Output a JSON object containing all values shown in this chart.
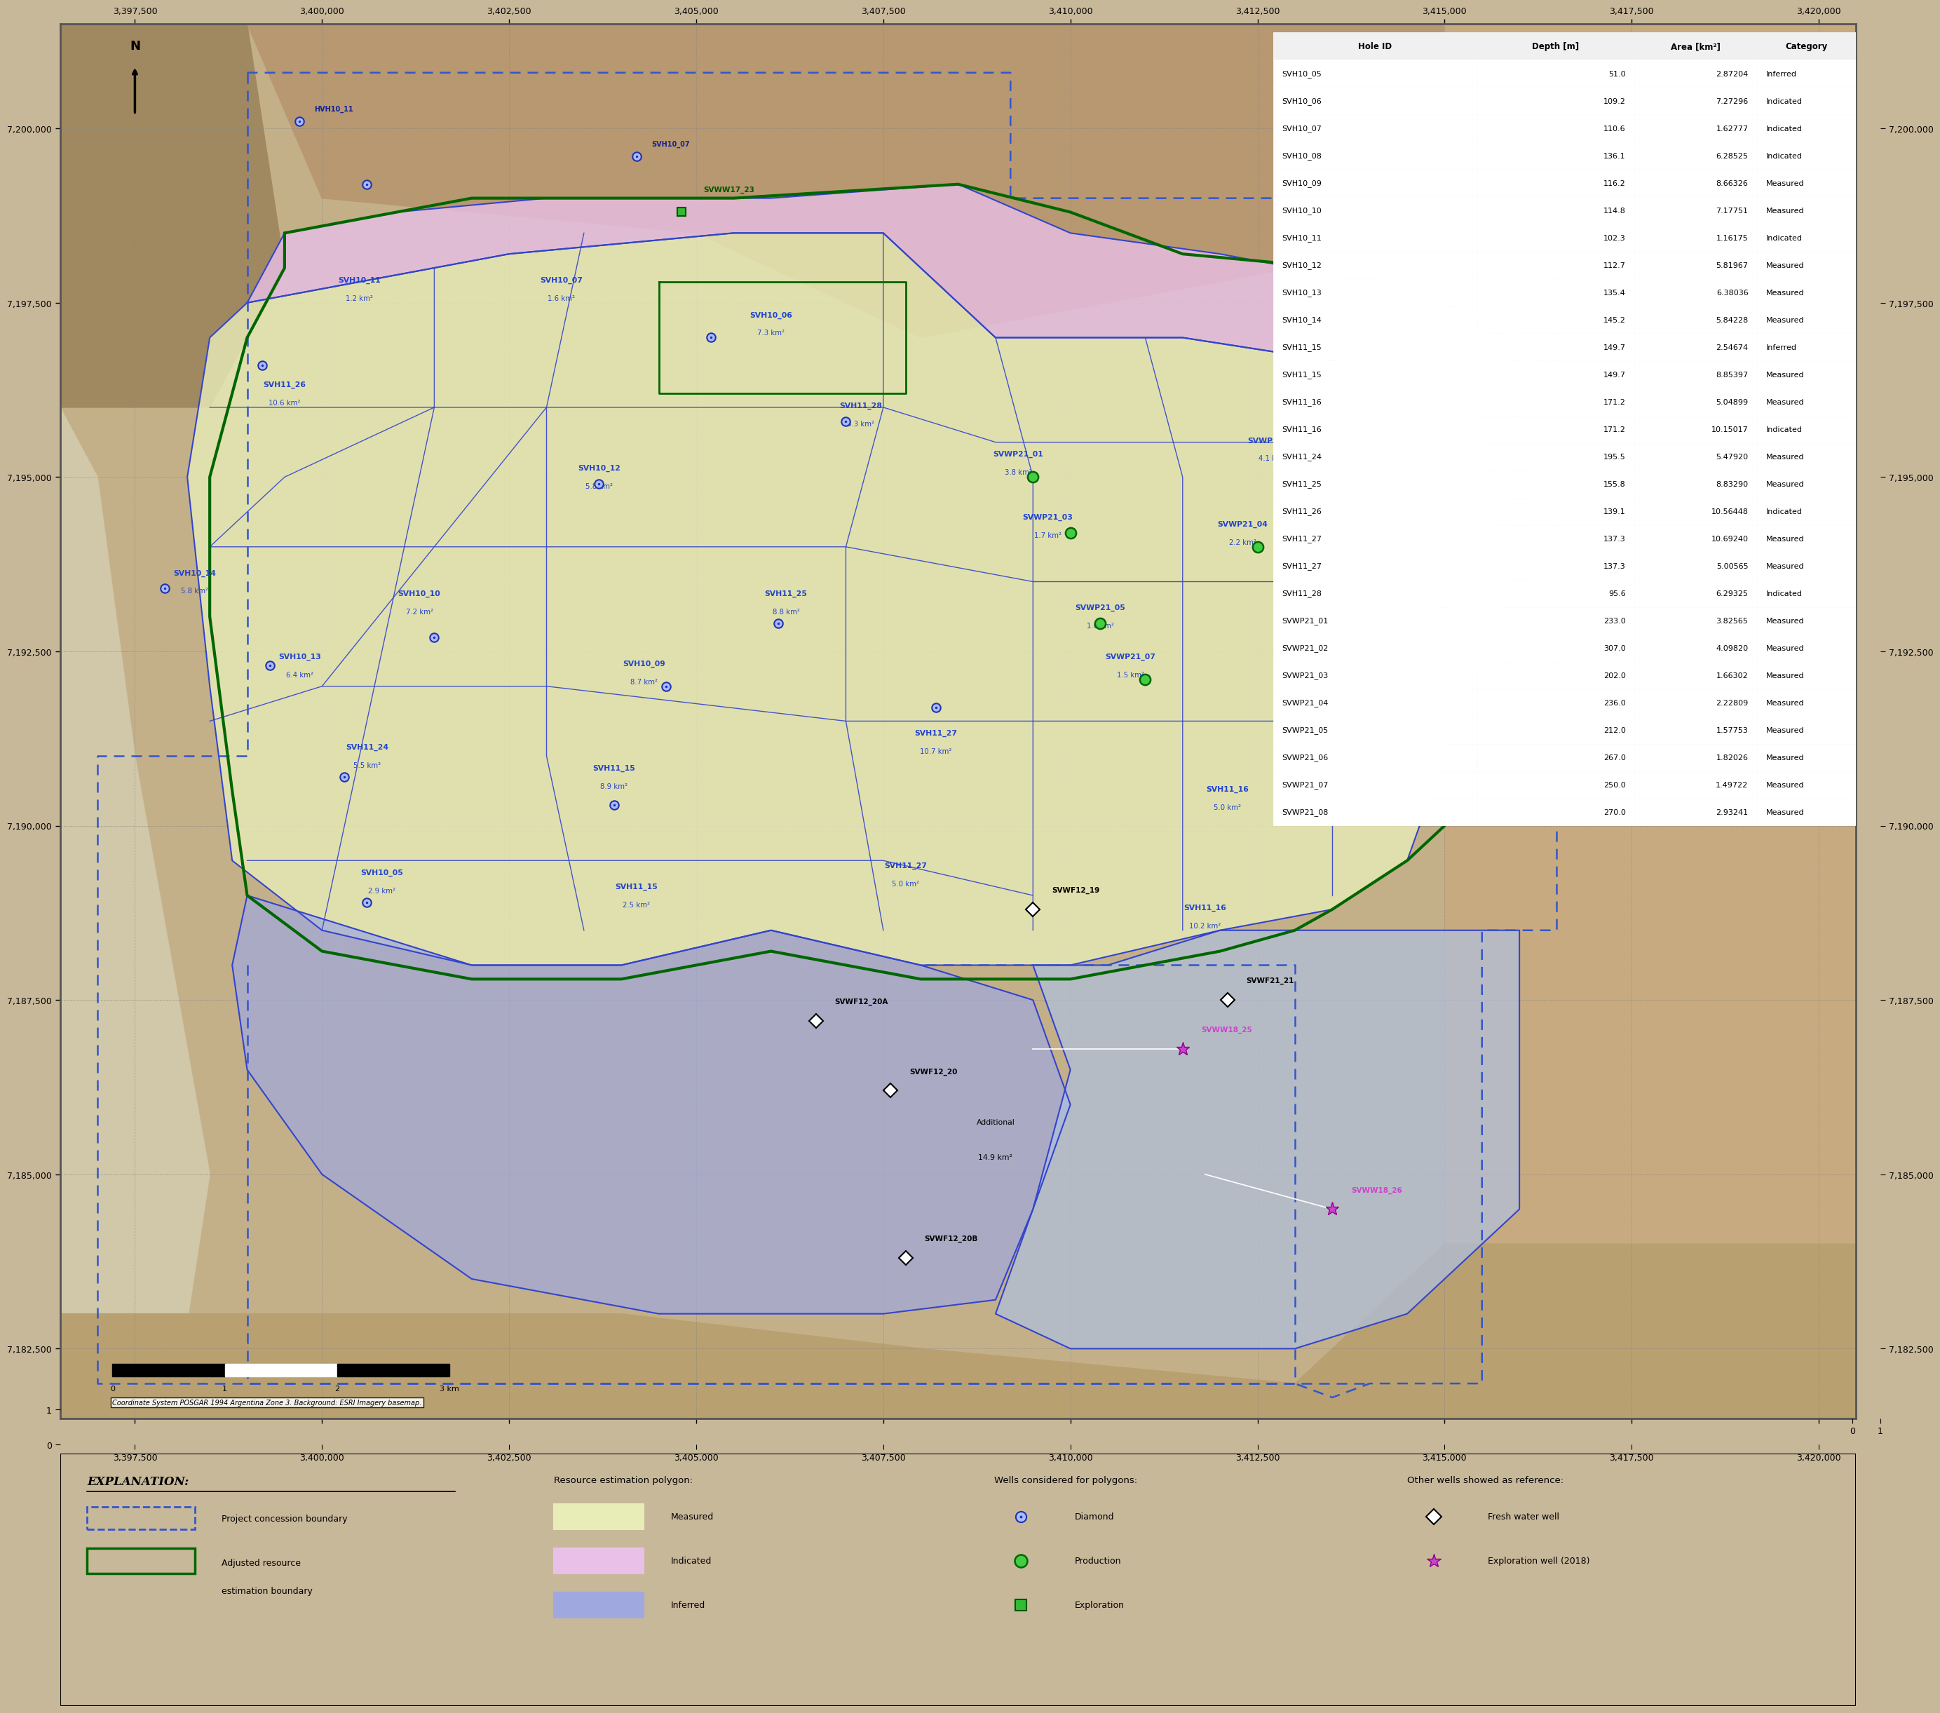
{
  "fig_width": 26.41,
  "fig_height": 24.86,
  "map_xlim": [
    3396500,
    3420500
  ],
  "map_ylim": [
    7181500,
    7201500
  ],
  "x_ticks": [
    3397500,
    3400000,
    3402500,
    3405000,
    3407500,
    3410000,
    3412500,
    3415000,
    3417500,
    3420000
  ],
  "y_ticks": [
    7182500,
    7185000,
    7187500,
    7190000,
    7192500,
    7195000,
    7197500,
    7200000
  ],
  "bg_color": "#c8b89a",
  "map_bg_color": "#b8a882",
  "table_data": [
    [
      "SVH10_05",
      "51.0",
      "2.87204",
      "Inferred"
    ],
    [
      "SVH10_06",
      "109.2",
      "7.27296",
      "Indicated"
    ],
    [
      "SVH10_07",
      "110.6",
      "1.62777",
      "Indicated"
    ],
    [
      "SVH10_08",
      "136.1",
      "6.28525",
      "Indicated"
    ],
    [
      "SVH10_09",
      "116.2",
      "8.66326",
      "Measured"
    ],
    [
      "SVH10_10",
      "114.8",
      "7.17751",
      "Measured"
    ],
    [
      "SVH10_11",
      "102.3",
      "1.16175",
      "Indicated"
    ],
    [
      "SVH10_12",
      "112.7",
      "5.81967",
      "Measured"
    ],
    [
      "SVH10_13",
      "135.4",
      "6.38036",
      "Measured"
    ],
    [
      "SVH10_14",
      "145.2",
      "5.84228",
      "Measured"
    ],
    [
      "SVH11_15",
      "149.7",
      "2.54674",
      "Inferred"
    ],
    [
      "SVH11_15",
      "149.7",
      "8.85397",
      "Measured"
    ],
    [
      "SVH11_16",
      "171.2",
      "5.04899",
      "Measured"
    ],
    [
      "SVH11_16",
      "171.2",
      "10.15017",
      "Indicated"
    ],
    [
      "SVH11_24",
      "195.5",
      "5.47920",
      "Measured"
    ],
    [
      "SVH11_25",
      "155.8",
      "8.83290",
      "Measured"
    ],
    [
      "SVH11_26",
      "139.1",
      "10.56448",
      "Indicated"
    ],
    [
      "SVH11_27",
      "137.3",
      "10.69240",
      "Measured"
    ],
    [
      "SVH11_27",
      "137.3",
      "5.00565",
      "Measured"
    ],
    [
      "SVH11_28",
      "95.6",
      "6.29325",
      "Indicated"
    ],
    [
      "SVWP21_01",
      "233.0",
      "3.82565",
      "Measured"
    ],
    [
      "SVWP21_02",
      "307.0",
      "4.09820",
      "Measured"
    ],
    [
      "SVWP21_03",
      "202.0",
      "1.66302",
      "Measured"
    ],
    [
      "SVWP21_04",
      "236.0",
      "2.22809",
      "Measured"
    ],
    [
      "SVWP21_05",
      "212.0",
      "1.57753",
      "Measured"
    ],
    [
      "SVWP21_06",
      "267.0",
      "1.82026",
      "Measured"
    ],
    [
      "SVWP21_07",
      "250.0",
      "1.49722",
      "Measured"
    ],
    [
      "SVWP21_08",
      "270.0",
      "2.93241",
      "Measured"
    ]
  ],
  "measured_color": "#e8edb8",
  "indicated_color": "#e8c0e8",
  "inferred_color": "#a0a8e0",
  "additional_color": "#b0c0e0",
  "concession_color": "#3344cc",
  "resource_boundary_color": "#006600",
  "label_color": "#2244cc",
  "coordinate_system": "Coordinate System POSGAR 1994 Argentina Zone 3. Background: ESRI Imagery basemap."
}
